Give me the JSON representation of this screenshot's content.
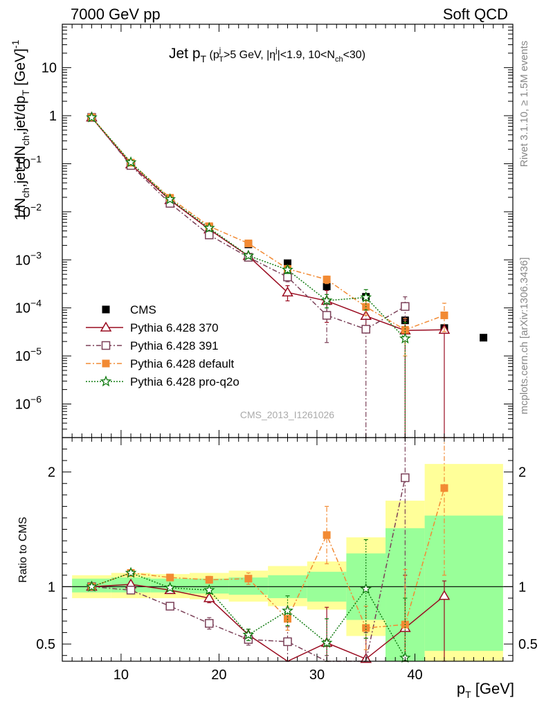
{
  "header": {
    "left": "7000 GeV pp",
    "right": "Soft QCD"
  },
  "side_labels": {
    "rivet": "Rivet 3.1.10, ≥ 1.5M events",
    "mcplots": "mcplots.cern.ch [arXiv:1306.3436]"
  },
  "analysis_id": "CMS_2013_I1261026",
  "chart_data": [
    {
      "type": "scatter",
      "title": {
        "main": "Jet p",
        "main_sub": "T",
        "cut_a": "(p",
        "cut_a_sup": "j",
        "cut_a_sub": "T",
        "cut_b": ">5 GeV, |η",
        "cut_b_sup": "j",
        "cut_c": "|<1.9, 10<N",
        "cut_c_sub": "ch",
        "cut_d": "<30)"
      },
      "ylabel": {
        "p1": "1/N",
        "p1_sub": "ch",
        "p2": ",jet dN",
        "p2_sub": "ch",
        "p3": ",jet/dp",
        "p3_sub": "T",
        "p4": " [GeV]",
        "p4_sup": "-1"
      },
      "xlim": [
        4,
        50
      ],
      "ylim": [
        2e-07,
        80
      ],
      "yscale": "log",
      "x_ticks": [
        10,
        20,
        30,
        40
      ],
      "y_ticks": [
        {
          "v": 1e-06,
          "base": "10",
          "exp": "−6"
        },
        {
          "v": 1e-05,
          "base": "10",
          "exp": "−5"
        },
        {
          "v": 0.0001,
          "base": "10",
          "exp": "−4"
        },
        {
          "v": 0.001,
          "base": "10",
          "exp": "−3"
        },
        {
          "v": 0.01,
          "base": "10",
          "exp": "−2"
        },
        {
          "v": 0.1,
          "base": "10",
          "exp": "−1"
        },
        {
          "v": 1,
          "base": "1",
          "exp": ""
        },
        {
          "v": 10,
          "base": "10",
          "exp": ""
        }
      ],
      "legend_position": "lower-left",
      "series": [
        {
          "name": "CMS",
          "color": "#000000",
          "marker": "square-filled",
          "line": "none",
          "x": [
            7,
            11,
            15,
            19,
            23,
            27,
            31,
            35,
            39,
            43,
            47
          ],
          "y": [
            0.92,
            0.095,
            0.018,
            0.0047,
            0.0021,
            0.00085,
            0.00028,
            0.00017,
            5.5e-05,
            3.8e-05,
            2.4e-05
          ]
        },
        {
          "name": "Pythia 6.428 370",
          "color": "#990a1f",
          "marker": "triangle-open",
          "line": "solid",
          "x": [
            7,
            11,
            15,
            19,
            23,
            27,
            31,
            35,
            39,
            43
          ],
          "y": [
            0.92,
            0.097,
            0.0175,
            0.0043,
            0.0012,
            0.00021,
            0.00014,
            6.8e-05,
            3.4e-05,
            3.5e-05
          ],
          "err_lo": [
            0.9,
            0.095,
            0.017,
            0.0041,
            0.00112,
            0.00014,
            5e-05,
            3.4e-05,
            2e-07,
            2e-07
          ],
          "err_hi": [
            0.94,
            0.099,
            0.018,
            0.0045,
            0.00128,
            0.00029,
            0.00023,
            0.000102,
            6e-05,
            4e-05
          ]
        },
        {
          "name": "Pythia 6.428 391",
          "color": "#7a3f57",
          "marker": "square-open",
          "line": "dashdot",
          "x": [
            7,
            11,
            15,
            19,
            23,
            27,
            31,
            35,
            39
          ],
          "y": [
            0.92,
            0.092,
            0.015,
            0.0033,
            0.00113,
            0.00044,
            7e-05,
            3.6e-05,
            0.000107
          ],
          "err_lo": [
            0.9,
            0.09,
            0.0145,
            0.0031,
            0.00105,
            0.00035,
            1.9e-05,
            2e-07,
            5.5e-05
          ],
          "err_hi": [
            0.94,
            0.094,
            0.0155,
            0.0035,
            0.00121,
            0.00055,
            0.00012,
            0.00017,
            0.00017
          ]
        },
        {
          "name": "Pythia 6.428 default",
          "color": "#f28a33",
          "marker": "square-filled",
          "line": "dashdot",
          "x": [
            7,
            11,
            15,
            19,
            23,
            27,
            31,
            35,
            39,
            43
          ],
          "y": [
            0.92,
            0.105,
            0.0195,
            0.005,
            0.0022,
            0.00065,
            0.00039,
            0.000105,
            3.5e-05,
            7e-05
          ],
          "err_lo": [
            0.9,
            0.103,
            0.019,
            0.0048,
            0.0021,
            0.00058,
            0.00032,
            7e-05,
            1e-05,
            3.2e-05
          ],
          "err_hi": [
            0.94,
            0.107,
            0.02,
            0.0052,
            0.0023,
            0.00072,
            0.00046,
            0.00014,
            6e-05,
            0.000125
          ]
        },
        {
          "name": "Pythia 6.428 pro-q2o",
          "color": "#0e7a0e",
          "marker": "star-open",
          "line": "dotted",
          "x": [
            7,
            11,
            15,
            19,
            23,
            27,
            31,
            35,
            39
          ],
          "y": [
            0.92,
            0.107,
            0.0182,
            0.0046,
            0.00122,
            0.00062,
            0.000142,
            0.000165,
            2.3e-05
          ],
          "err_lo": [
            0.9,
            0.105,
            0.0177,
            0.0044,
            0.00116,
            0.00052,
            0.0001,
            9e-05,
            2e-07
          ],
          "err_hi": [
            0.94,
            0.109,
            0.0187,
            0.0048,
            0.00128,
            0.00072,
            0.00019,
            0.00024,
            5e-05
          ]
        }
      ]
    },
    {
      "type": "line",
      "ylabel": "Ratio to CMS",
      "xlabel": {
        "main": "p",
        "sub": "T",
        "unit": " [GeV]"
      },
      "xlim": [
        4,
        50
      ],
      "ylim": [
        0.35,
        2.3
      ],
      "y_ticks": [
        0.5,
        1,
        2
      ],
      "x_ticks": [
        10,
        20,
        30,
        40
      ],
      "reference_line": 1,
      "bands": [
        {
          "x0": 5,
          "x1": 9,
          "yellow": [
            0.9,
            1.1
          ],
          "green": [
            0.95,
            1.07
          ]
        },
        {
          "x0": 9,
          "x1": 13,
          "yellow": [
            0.9,
            1.12
          ],
          "green": [
            0.95,
            1.08
          ]
        },
        {
          "x0": 13,
          "x1": 17,
          "yellow": [
            0.9,
            1.11
          ],
          "green": [
            0.95,
            1.07
          ]
        },
        {
          "x0": 17,
          "x1": 21,
          "yellow": [
            0.89,
            1.12
          ],
          "green": [
            0.94,
            1.07
          ]
        },
        {
          "x0": 21,
          "x1": 25,
          "yellow": [
            0.87,
            1.14
          ],
          "green": [
            0.93,
            1.08
          ]
        },
        {
          "x0": 25,
          "x1": 29,
          "yellow": [
            0.83,
            1.18
          ],
          "green": [
            0.9,
            1.1
          ]
        },
        {
          "x0": 29,
          "x1": 33,
          "yellow": [
            0.8,
            1.22
          ],
          "green": [
            0.87,
            1.13
          ]
        },
        {
          "x0": 33,
          "x1": 37,
          "yellow": [
            0.57,
            1.43
          ],
          "green": [
            0.71,
            1.29
          ]
        },
        {
          "x0": 37,
          "x1": 41,
          "yellow": [
            0.35,
            1.75
          ],
          "green": [
            0.35,
            1.51
          ]
        },
        {
          "x0": 41,
          "x1": 49,
          "yellow": [
            0.35,
            2.07
          ],
          "green": [
            0.44,
            1.62
          ]
        }
      ],
      "series": [
        {
          "name": "Pythia 6.428 370",
          "color": "#990a1f",
          "marker": "triangle-open",
          "line": "solid",
          "x": [
            7,
            11,
            15,
            19,
            23,
            27,
            31,
            35,
            39,
            43
          ],
          "y": [
            1.0,
            1.02,
            0.97,
            0.9,
            0.58,
            0.28,
            0.51,
            0.37,
            0.64,
            0.92
          ],
          "err_lo": [
            0.98,
            1.0,
            0.95,
            0.86,
            0.53,
            0.2,
            0.2,
            0.2,
            0.2,
            0.2
          ],
          "err_hi": [
            1.02,
            1.04,
            0.99,
            0.94,
            0.63,
            0.35,
            0.82,
            0.55,
            1.1,
            1.05
          ]
        },
        {
          "name": "Pythia 6.428 391",
          "color": "#7a3f57",
          "marker": "square-open",
          "line": "dashdot",
          "x": [
            7,
            11,
            15,
            19,
            23,
            27,
            31,
            35,
            39
          ],
          "y": [
            1.0,
            0.97,
            0.83,
            0.68,
            0.54,
            0.52,
            0.25,
            0.22,
            1.95
          ],
          "err_lo": [
            0.98,
            0.95,
            0.8,
            0.63,
            0.49,
            0.2,
            0.2,
            0.2,
            1.0
          ],
          "err_hi": [
            1.02,
            0.99,
            0.86,
            0.73,
            0.59,
            0.65,
            0.4,
            0.6,
            2.3
          ]
        },
        {
          "name": "Pythia 6.428 default",
          "color": "#f28a33",
          "marker": "square-filled",
          "line": "dashdot",
          "x": [
            7,
            11,
            15,
            19,
            23,
            27,
            31,
            35,
            39,
            43
          ],
          "y": [
            1.0,
            1.12,
            1.08,
            1.06,
            1.07,
            0.72,
            1.45,
            0.64,
            0.67,
            1.86
          ],
          "err_lo": [
            0.98,
            1.1,
            1.06,
            1.03,
            1.02,
            0.62,
            1.2,
            0.45,
            0.25,
            1.1
          ],
          "err_hi": [
            1.02,
            1.14,
            1.1,
            1.09,
            1.12,
            0.82,
            1.7,
            0.83,
            1.15,
            2.3
          ]
        },
        {
          "name": "Pythia 6.428 pro-q2o",
          "color": "#0e7a0e",
          "marker": "star-open",
          "line": "dotted",
          "x": [
            7,
            11,
            15,
            19,
            23,
            27,
            31,
            35,
            39
          ],
          "y": [
            1.0,
            1.12,
            0.99,
            0.97,
            0.58,
            0.79,
            0.51,
            0.98,
            0.38
          ],
          "err_lo": [
            0.98,
            1.1,
            0.97,
            0.94,
            0.53,
            0.66,
            0.3,
            0.55,
            0.2
          ],
          "err_hi": [
            1.02,
            1.14,
            1.01,
            1.0,
            0.63,
            0.92,
            0.72,
            1.41,
            0.9
          ]
        }
      ]
    }
  ]
}
